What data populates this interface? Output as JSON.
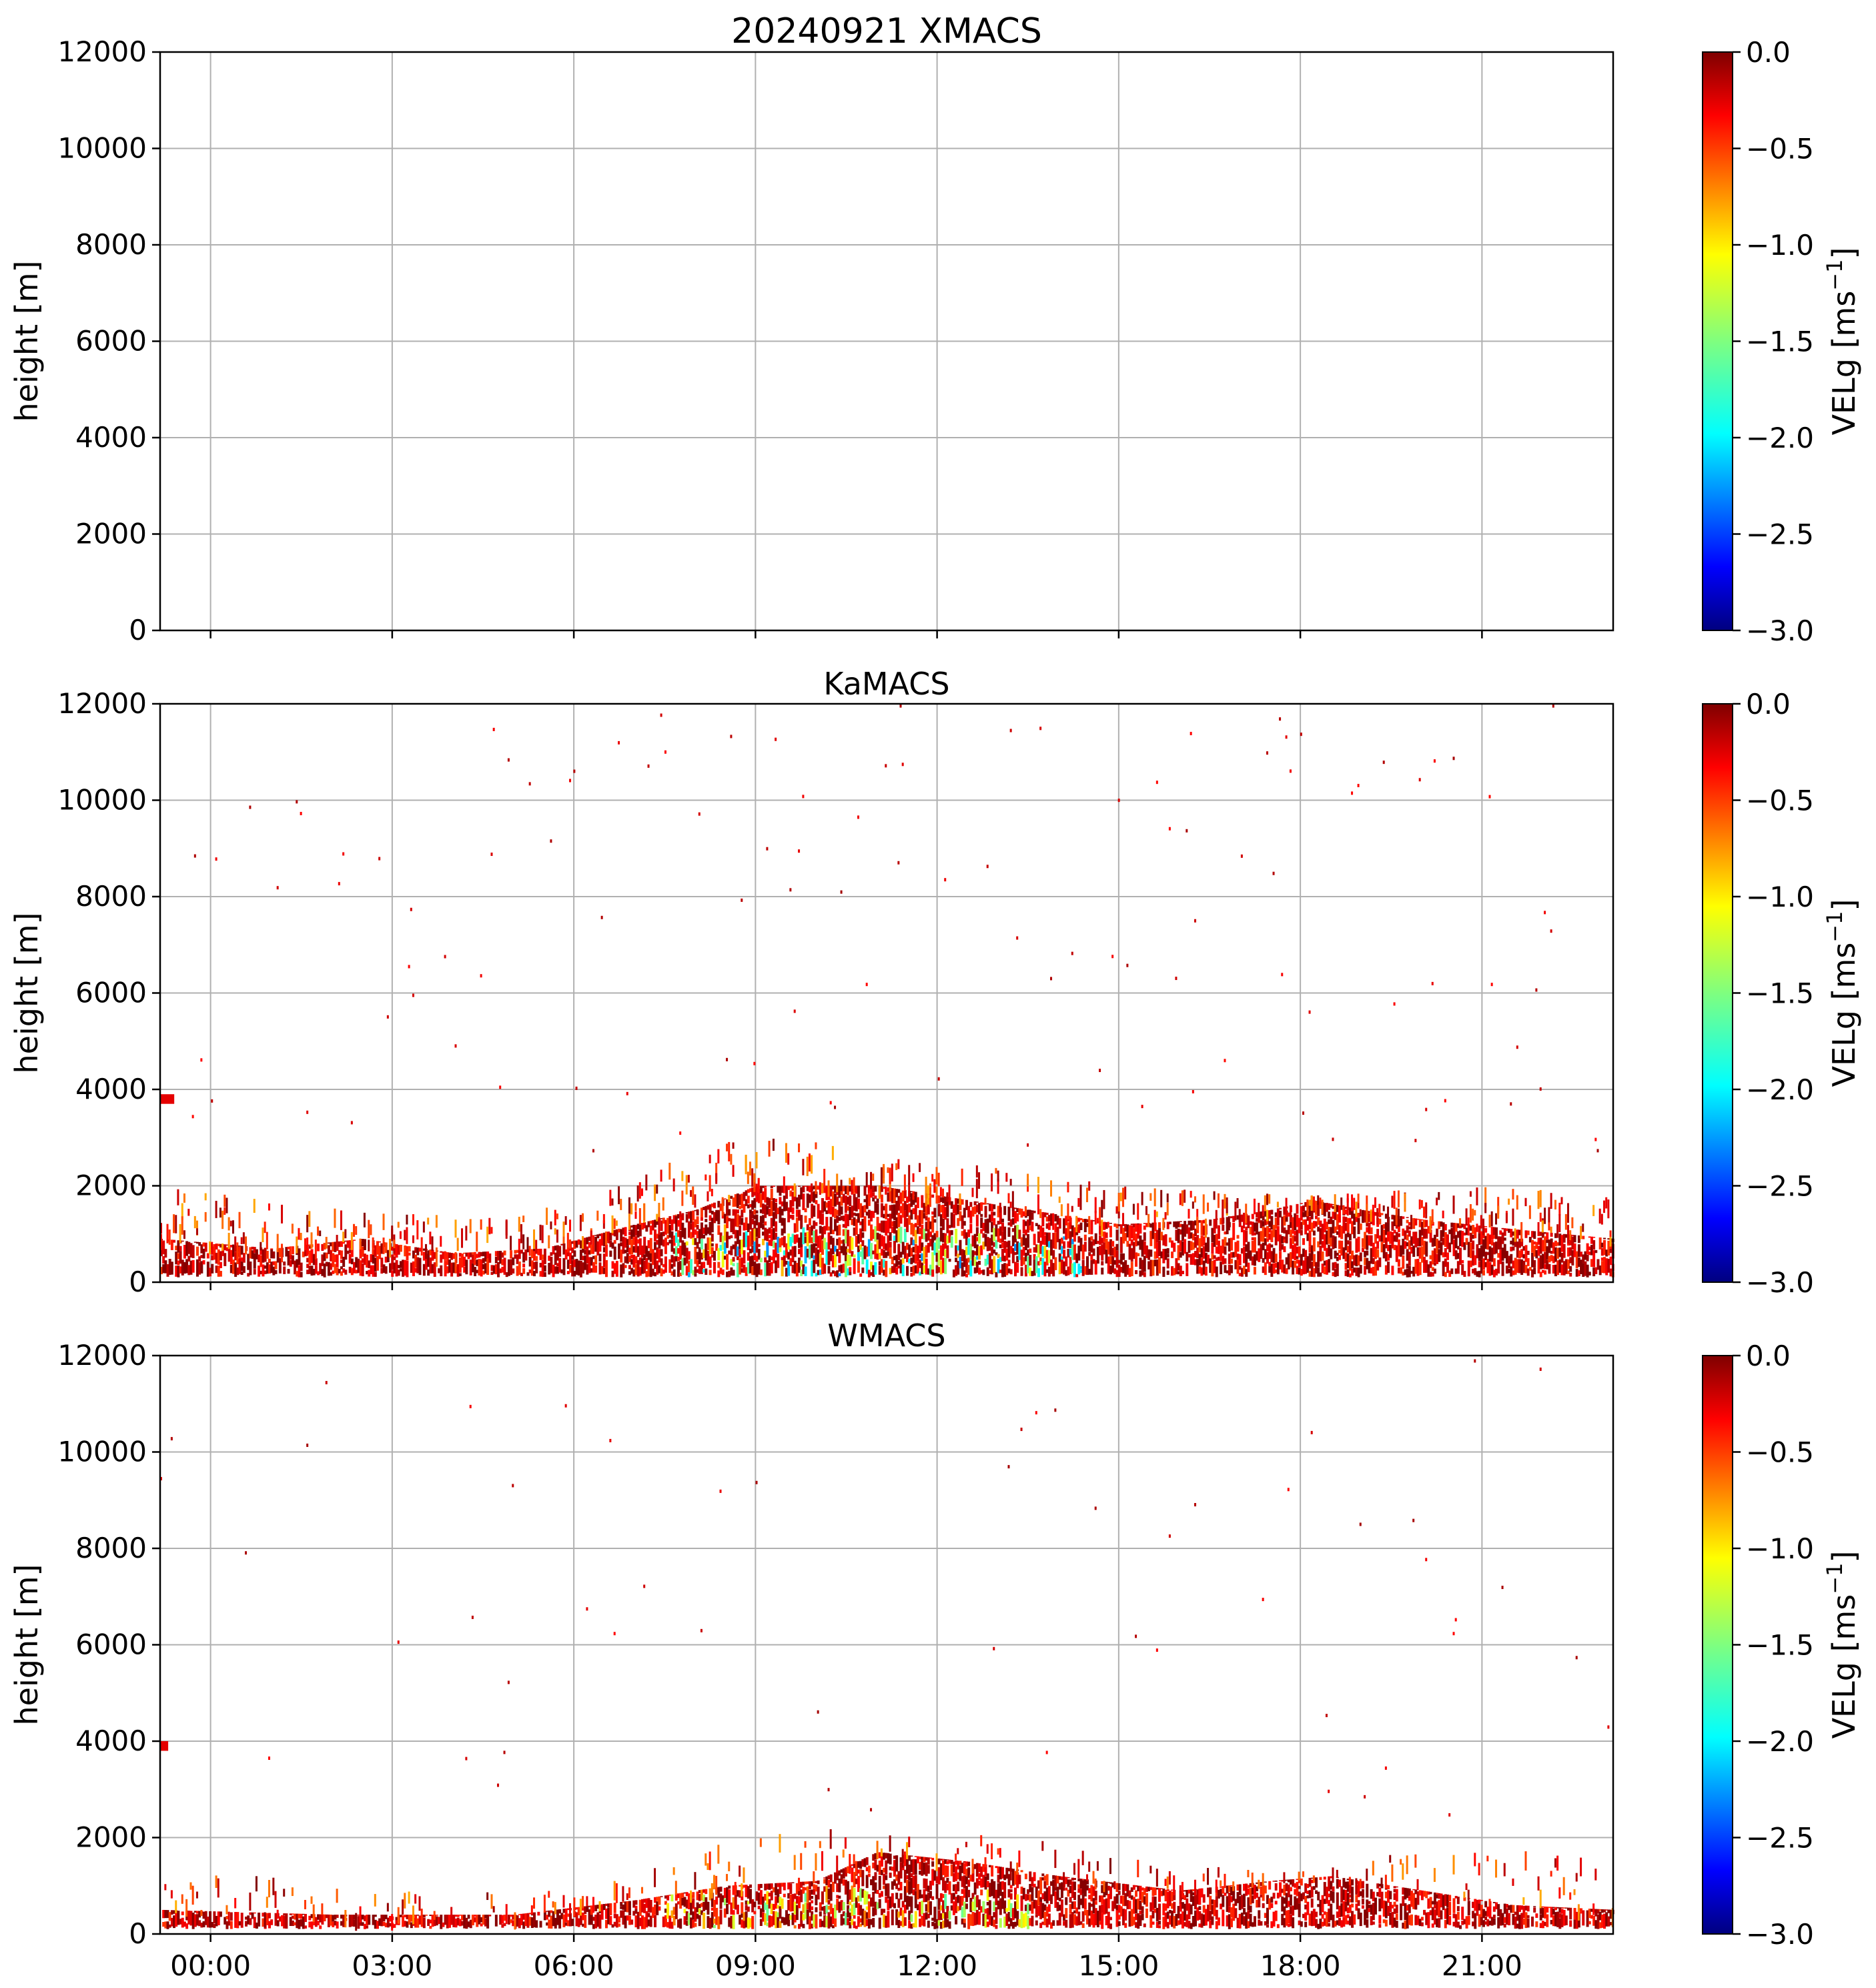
{
  "colors": {
    "grid": "#b0b0b0",
    "axis": "#000000",
    "colormap": [
      "#00007f",
      "#0000ff",
      "#007fff",
      "#00ffff",
      "#7fff7f",
      "#ffff00",
      "#ff7f00",
      "#ff0000",
      "#7f0000"
    ]
  },
  "chart_data": [
    {
      "type": "heatmap",
      "title": "20240921 XMACS",
      "ylabel": "height [m]",
      "xlabel": "",
      "ylim": [
        0,
        12000
      ],
      "yticks": [
        "0",
        "2000",
        "4000",
        "6000",
        "8000",
        "10000",
        "12000"
      ],
      "xlim_hours": [
        -0.8333,
        23.1667
      ],
      "xticks_hours": [
        0,
        3,
        6,
        9,
        12,
        15,
        18,
        21
      ],
      "xtick_labels": [],
      "grid": true,
      "colorbar": {
        "label": "VELg [ms",
        "label_sup": "−1",
        "label_end": "]",
        "range": [
          -3.0,
          0.0
        ],
        "ticks": [
          "0.0",
          "−0.5",
          "−1.0",
          "−1.5",
          "−2.0",
          "−2.5",
          "−3.0"
        ]
      },
      "echo": {
        "present": false
      }
    },
    {
      "type": "heatmap",
      "title": "KaMACS",
      "ylabel": "height [m]",
      "xlabel": "",
      "ylim": [
        0,
        12000
      ],
      "yticks": [
        "0",
        "2000",
        "4000",
        "6000",
        "8000",
        "10000",
        "12000"
      ],
      "xlim_hours": [
        -0.8333,
        23.1667
      ],
      "xticks_hours": [
        0,
        3,
        6,
        9,
        12,
        15,
        18,
        21
      ],
      "xtick_labels": [],
      "grid": true,
      "colorbar": {
        "label": "VELg [ms",
        "label_sup": "−1",
        "label_end": "]",
        "range": [
          -3.0,
          0.0
        ],
        "ticks": [
          "0.0",
          "−0.5",
          "−1.0",
          "−1.5",
          "−2.0",
          "−2.5",
          "−3.0"
        ]
      },
      "echo": {
        "present": true,
        "cloud_top_m": [
          [
            -0.83,
            900
          ],
          [
            1,
            700
          ],
          [
            2.5,
            900
          ],
          [
            4,
            600
          ],
          [
            5.5,
            700
          ],
          [
            7,
            1200
          ],
          [
            8,
            1500
          ],
          [
            9,
            2000
          ],
          [
            11,
            2000
          ],
          [
            12.5,
            1700
          ],
          [
            14,
            1400
          ],
          [
            15,
            1200
          ],
          [
            16.5,
            1300
          ],
          [
            17.5,
            1500
          ],
          [
            18.2,
            1700
          ],
          [
            19,
            1500
          ],
          [
            20,
            1300
          ],
          [
            21.5,
            1100
          ],
          [
            23.17,
            900
          ]
        ],
        "sparse_top_m": [
          [
            -0.83,
            2000
          ],
          [
            3,
            1400
          ],
          [
            6,
            1600
          ],
          [
            7.5,
            2500
          ],
          [
            9,
            3100
          ],
          [
            11,
            2700
          ],
          [
            13,
            2400
          ],
          [
            15,
            2000
          ],
          [
            18,
            1800
          ],
          [
            21,
            2000
          ],
          [
            23.17,
            1800
          ]
        ],
        "intense_bands": [
          [
            7.5,
            14.5,
            900,
            -2.2
          ],
          [
            15.5,
            19.5,
            1200,
            -0.6
          ]
        ],
        "noise_density": 0.6,
        "low_level_patch_m": [
          [
            -0.83,
            -0.6,
            3700,
            3900
          ]
        ]
      }
    },
    {
      "type": "heatmap",
      "title": "WMACS",
      "ylabel": "height [m]",
      "xlabel": "",
      "ylim": [
        0,
        12000
      ],
      "yticks": [
        "0",
        "2000",
        "4000",
        "6000",
        "8000",
        "10000",
        "12000"
      ],
      "xlim_hours": [
        -0.8333,
        23.1667
      ],
      "xticks_hours": [
        0,
        3,
        6,
        9,
        12,
        15,
        18,
        21
      ],
      "xtick_labels": [
        "00:00",
        "03:00",
        "06:00",
        "09:00",
        "12:00",
        "15:00",
        "18:00",
        "21:00"
      ],
      "grid": true,
      "colorbar": {
        "label": "VELg [ms",
        "label_sup": "−1",
        "label_end": "]",
        "range": [
          -3.0,
          0.0
        ],
        "ticks": [
          "0.0",
          "−0.5",
          "−1.0",
          "−1.5",
          "−2.0",
          "−2.5",
          "−3.0"
        ]
      },
      "echo": {
        "present": true,
        "cloud_top_m": [
          [
            -0.83,
            500
          ],
          [
            2,
            400
          ],
          [
            5,
            400
          ],
          [
            7,
            700
          ],
          [
            8.5,
            1000
          ],
          [
            10,
            1100
          ],
          [
            11,
            1700
          ],
          [
            12.5,
            1500
          ],
          [
            14,
            1200
          ],
          [
            16,
            900
          ],
          [
            17.5,
            1100
          ],
          [
            18.5,
            1200
          ],
          [
            20,
            900
          ],
          [
            21.5,
            600
          ],
          [
            23.17,
            500
          ]
        ],
        "sparse_top_m": [
          [
            -0.83,
            1500
          ],
          [
            3,
            900
          ],
          [
            6,
            900
          ],
          [
            8,
            1800
          ],
          [
            10,
            2200
          ],
          [
            12,
            2200
          ],
          [
            14,
            1900
          ],
          [
            16,
            1400
          ],
          [
            18,
            1400
          ],
          [
            21,
            1900
          ],
          [
            23.17,
            1500
          ]
        ],
        "intense_bands": [
          [
            7.5,
            13.5,
            700,
            -1.6
          ],
          [
            15.5,
            19.0,
            600,
            -0.5
          ]
        ],
        "noise_density": 0.35,
        "low_level_patch_m": [
          [
            -0.83,
            -0.7,
            3800,
            4000
          ]
        ]
      }
    }
  ]
}
